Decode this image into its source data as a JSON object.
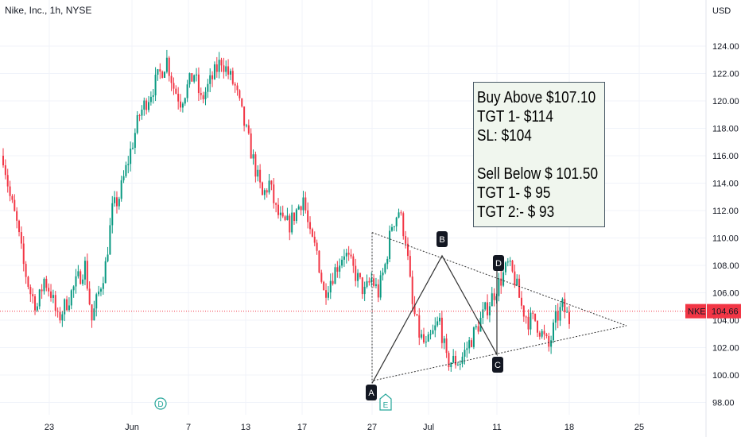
{
  "symbol": {
    "title": "Nike, Inc., 1h, NYSE"
  },
  "currency_label": "USD",
  "price_tag": {
    "symbol": "NKE",
    "value": "104.66",
    "price": 104.66,
    "color": "#f23645"
  },
  "note": {
    "lines": [
      "Buy Above $107.10",
      "TGT 1- $114",
      "SL: $104",
      "",
      "Sell Below $ 101.50",
      "TGT 1- $ 95",
      "TGT 2:- $ 93"
    ]
  },
  "colors": {
    "up": "#089981",
    "down": "#f23645",
    "grid": "#f0f3fa",
    "pattern": "#333333",
    "event_marker": "#26a69a"
  },
  "pattern_labels": [
    "A",
    "B",
    "C",
    "D"
  ],
  "event_markers": [
    "D",
    "E"
  ],
  "chart_data": {
    "type": "candlestick",
    "title": "Nike, Inc., 1h, NYSE",
    "y_ticks": [
      98,
      100,
      102,
      104,
      106,
      108,
      110,
      112,
      114,
      116,
      118,
      120,
      122,
      124
    ],
    "y_tick_labels": [
      "98.00",
      "100.00",
      "102.00",
      "104.00",
      "106.00",
      "108.00",
      "110.00",
      "112.00",
      "114.00",
      "116.00",
      "118.00",
      "120.00",
      "122.00",
      "124.00"
    ],
    "ylim": [
      97,
      125.8
    ],
    "x_tick_labels": [
      "23",
      "Jun",
      "7",
      "13",
      "17",
      "27",
      "Jul",
      "11",
      "18",
      "25"
    ],
    "grid": true,
    "last_price": 104.66,
    "series_close": [
      116,
      113,
      111,
      108,
      106,
      105,
      107,
      106,
      104,
      105,
      106,
      107,
      108,
      104,
      106,
      108,
      112,
      113,
      115,
      117,
      119,
      120,
      121,
      122,
      123,
      121,
      120,
      121,
      122,
      120,
      121,
      122,
      123,
      122,
      121,
      119,
      117,
      115,
      113,
      114,
      112,
      111,
      111,
      112,
      113,
      110,
      109,
      106,
      107,
      108,
      109,
      108,
      107,
      106,
      107,
      106,
      108,
      111,
      112,
      110,
      105,
      103,
      102,
      103,
      104,
      101,
      101,
      101,
      102,
      103,
      104,
      105,
      106,
      107,
      108,
      107,
      105,
      104,
      104,
      103,
      102,
      104,
      105,
      104
    ],
    "pattern": {
      "type": "ABCD harmonic pattern with symmetrical triangle",
      "points": [
        {
          "label": "A",
          "date": "27 Jun",
          "price": 99.4
        },
        {
          "label": "B",
          "date": "2 Jul",
          "price": 108.7
        },
        {
          "label": "C",
          "date": "11 Jul",
          "price": 101.5
        },
        {
          "label": "D",
          "date": "10 Jul",
          "price": 108.0
        }
      ],
      "triangle_upper_start": {
        "date": "27 Jun",
        "price": 110.4
      },
      "triangle_apex": {
        "date": "24 Jul",
        "price": 103.6
      },
      "triangle_lower_start": {
        "date": "28 Jun",
        "price": 99.6
      }
    }
  }
}
